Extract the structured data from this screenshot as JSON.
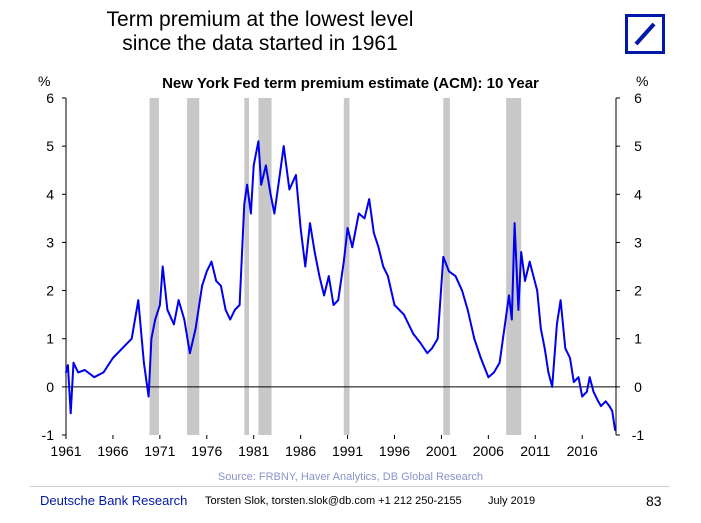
{
  "header": {
    "title_line1": "Term premium at the lowest level",
    "title_line2": "since the data started in 1961",
    "logo_icon": "deutsche-bank-slash-logo"
  },
  "chart_data": {
    "type": "line",
    "title": "New York Fed term premium estimate (ACM): 10 Year",
    "unit_left": "%",
    "unit_right": "%",
    "ylim": [
      -1,
      6
    ],
    "yticks": [
      "-1",
      "0",
      "1",
      "2",
      "3",
      "4",
      "5",
      "6"
    ],
    "xlim": [
      1961,
      2019.6
    ],
    "xticks": [
      "1961",
      "1966",
      "1971",
      "1976",
      "1981",
      "1986",
      "1991",
      "1996",
      "2001",
      "2006",
      "2011",
      "2016"
    ],
    "line_color": "#0000ee",
    "recession_color": "#c8c8c8",
    "recessions": [
      [
        1969.9,
        1970.9
      ],
      [
        1973.9,
        1975.2
      ],
      [
        1980.0,
        1980.5
      ],
      [
        1981.5,
        1982.9
      ],
      [
        1990.6,
        1991.2
      ],
      [
        2001.2,
        2001.9
      ],
      [
        2007.9,
        2009.5
      ]
    ],
    "series": [
      {
        "x": [
          1961.0,
          1961.2,
          1961.5,
          1961.8,
          1962.3,
          1963.0,
          1964.0,
          1965.0,
          1966.0,
          1967.0,
          1968.0,
          1968.7,
          1969.3,
          1969.8,
          1970.1,
          1970.5,
          1971.0,
          1971.3,
          1971.8,
          1972.5,
          1973.0,
          1973.6,
          1974.2,
          1974.8,
          1975.5,
          1976.0,
          1976.5,
          1977.0,
          1977.5,
          1978.0,
          1978.5,
          1979.0,
          1979.5,
          1980.0,
          1980.3,
          1980.7,
          1981.0,
          1981.5,
          1981.8,
          1982.3,
          1982.8,
          1983.2,
          1983.7,
          1984.2,
          1984.8,
          1985.5,
          1986.0,
          1986.5,
          1987.0,
          1987.5,
          1988.0,
          1988.5,
          1989.0,
          1989.5,
          1990.0,
          1990.6,
          1991.0,
          1991.5,
          1992.2,
          1992.8,
          1993.3,
          1993.8,
          1994.3,
          1994.8,
          1995.3,
          1996.0,
          1997.0,
          1998.0,
          1998.8,
          1999.5,
          2000.0,
          2000.6,
          2001.2,
          2001.8,
          2002.5,
          2003.2,
          2003.8,
          2004.5,
          2005.2,
          2006.0,
          2006.6,
          2007.2,
          2007.7,
          2008.2,
          2008.5,
          2008.8,
          2009.2,
          2009.5,
          2009.9,
          2010.4,
          2010.8,
          2011.2,
          2011.6,
          2012.0,
          2012.4,
          2012.8,
          2013.3,
          2013.7,
          2014.2,
          2014.7,
          2015.1,
          2015.6,
          2016.0,
          2016.5,
          2016.8,
          2017.2,
          2017.7,
          2018.0,
          2018.5,
          2018.9,
          2019.2,
          2019.5
        ],
        "y": [
          0.3,
          0.45,
          -0.55,
          0.5,
          0.3,
          0.35,
          0.2,
          0.3,
          0.6,
          0.8,
          1.0,
          1.8,
          0.5,
          -0.2,
          1.0,
          1.4,
          1.7,
          2.5,
          1.6,
          1.3,
          1.8,
          1.4,
          0.7,
          1.2,
          2.1,
          2.4,
          2.6,
          2.2,
          2.1,
          1.6,
          1.4,
          1.6,
          1.7,
          3.8,
          4.2,
          3.6,
          4.6,
          5.1,
          4.2,
          4.6,
          4.0,
          3.6,
          4.3,
          5.0,
          4.1,
          4.4,
          3.3,
          2.5,
          3.4,
          2.8,
          2.3,
          1.9,
          2.3,
          1.7,
          1.8,
          2.6,
          3.3,
          2.9,
          3.6,
          3.5,
          3.9,
          3.2,
          2.9,
          2.5,
          2.3,
          1.7,
          1.5,
          1.1,
          0.9,
          0.7,
          0.8,
          1.0,
          2.7,
          2.4,
          2.3,
          2.0,
          1.6,
          1.0,
          0.6,
          0.2,
          0.3,
          0.5,
          1.2,
          1.9,
          1.4,
          3.4,
          1.6,
          2.8,
          2.2,
          2.6,
          2.3,
          2.0,
          1.2,
          0.8,
          0.3,
          0.0,
          1.3,
          1.8,
          0.8,
          0.6,
          0.1,
          0.2,
          -0.2,
          -0.1,
          0.2,
          -0.1,
          -0.3,
          -0.4,
          -0.3,
          -0.4,
          -0.5,
          -0.9
        ]
      }
    ],
    "source": "Source: FRBNY, Haver Analytics, DB Global Research"
  },
  "footer": {
    "brand": "Deutsche Bank Research",
    "contact": "Torsten Slok, torsten.slok@db.com  +1 212 250-2155",
    "date": "July 2019",
    "page_number": "83"
  }
}
